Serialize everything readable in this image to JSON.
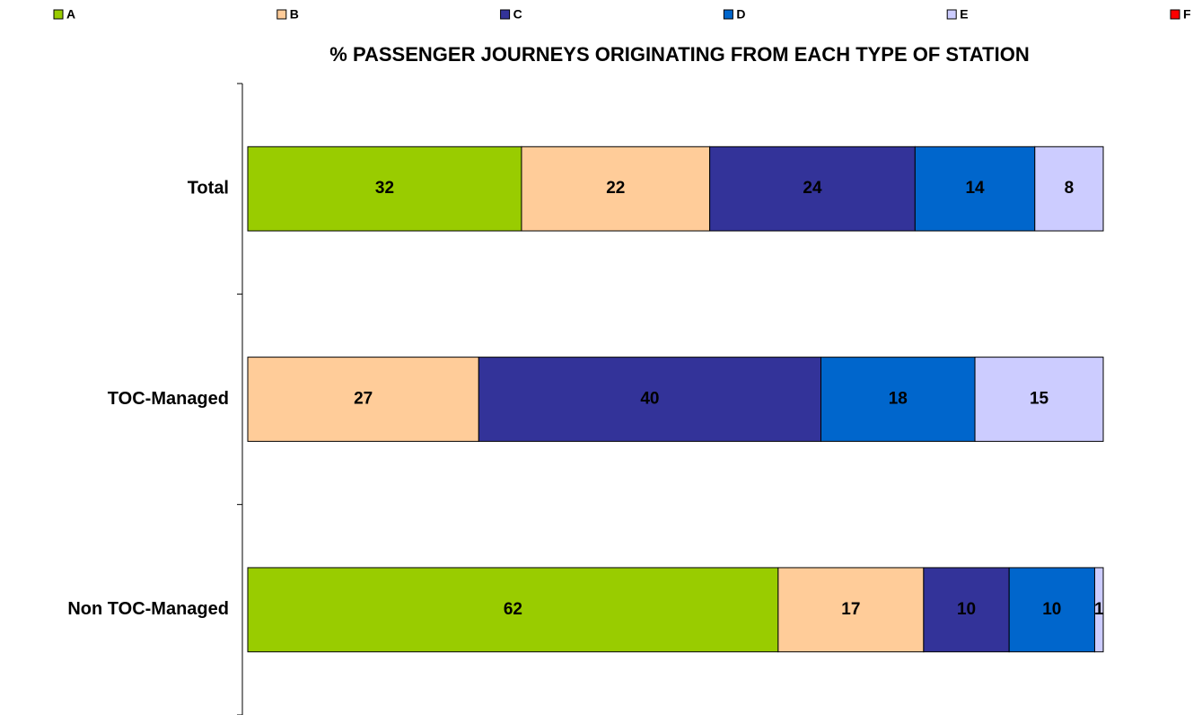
{
  "chart_data": {
    "type": "stacked-bar-horizontal",
    "title": "% PASSENGER JOURNEYS ORIGINATING FROM EACH TYPE OF STATION",
    "categories": [
      "Total",
      "TOC-Managed",
      "Non TOC-Managed"
    ],
    "series": [
      {
        "name": "A",
        "color": "#99cc00",
        "values": [
          32,
          null,
          62
        ]
      },
      {
        "name": "B",
        "color": "#ffcc99",
        "values": [
          22,
          27,
          17
        ]
      },
      {
        "name": "C",
        "color": "#333399",
        "values": [
          24,
          40,
          10
        ]
      },
      {
        "name": "D",
        "color": "#0066cc",
        "values": [
          14,
          18,
          10
        ]
      },
      {
        "name": "E",
        "color": "#ccccff",
        "values": [
          8,
          15,
          1
        ]
      },
      {
        "name": "F",
        "color": "#ff0000",
        "values": [
          null,
          null,
          null
        ]
      }
    ],
    "xlim": [
      0,
      100
    ],
    "legend": "top"
  }
}
